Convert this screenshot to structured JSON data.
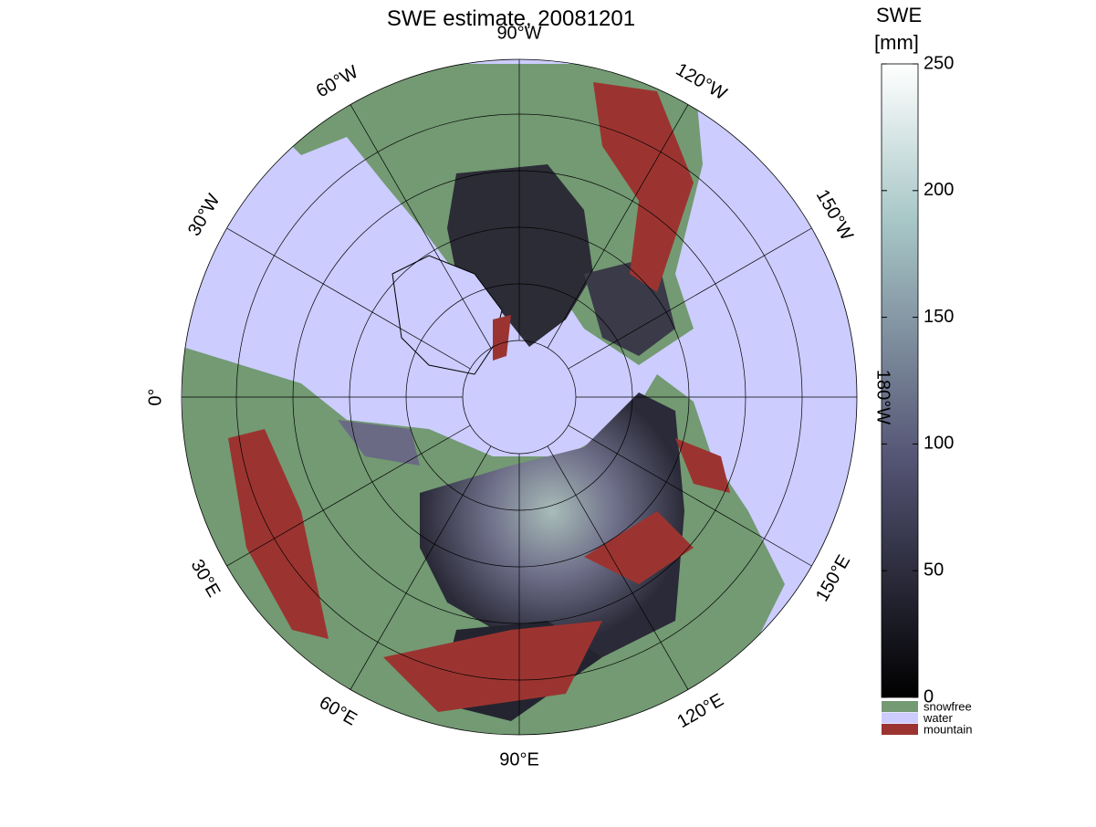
{
  "title": "SWE estimate, 20081201",
  "colorbar": {
    "label": [
      "SWE",
      "[mm]"
    ],
    "lim": [
      0,
      250
    ],
    "ticks": [
      0,
      50,
      100,
      150,
      200,
      250
    ]
  },
  "legend": [
    {
      "name": "snowfree",
      "color": "#739a73"
    },
    {
      "name": "water",
      "color": "#ccccff"
    },
    {
      "name": "mountain",
      "color": "#9b3430"
    }
  ],
  "meridian_labels": [
    "90°W",
    "120°W",
    "150°W",
    "180°W",
    "150°E",
    "120°E",
    "90°E",
    "60°E",
    "30°E",
    "0°",
    "30°W",
    "60°W"
  ]
}
